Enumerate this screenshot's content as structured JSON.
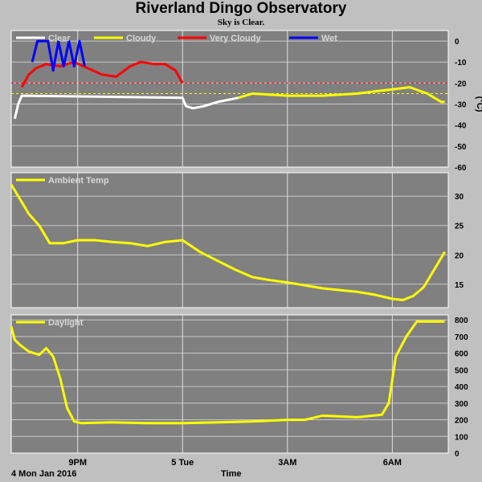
{
  "title": "Riverland Dingo Observatory",
  "subtitle": "Sky is Clear.",
  "footer": {
    "date_label": "4 Mon Jan 2016",
    "xlabel": "Time"
  },
  "chart_data": [
    {
      "type": "line",
      "name": "sky-temperature",
      "unit_label": "(°C)",
      "ylim": [
        -60,
        5
      ],
      "yticks": [
        0,
        -10,
        -20,
        -30,
        -40,
        -50,
        -60
      ],
      "xticks": [
        "9PM",
        "5 Tue",
        "3AM",
        "6AM"
      ],
      "xtick_hours": [
        21,
        24,
        27,
        30
      ],
      "xlim_hours": [
        19.1,
        31.6
      ],
      "grid": true,
      "legend": "top-left",
      "thresholds": [
        {
          "value": -20,
          "color": "#ff0000"
        },
        {
          "value": -25,
          "color": "#ffff00"
        }
      ],
      "series": [
        {
          "name": "Clear",
          "color": "#ffffff",
          "x": [
            19.2,
            19.3,
            19.4,
            24.0,
            24.1,
            24.3,
            24.6,
            25.0,
            25.3,
            25.6
          ],
          "y": [
            -37,
            -30,
            -26,
            -27,
            -31,
            -32,
            -31,
            -29,
            -28,
            -27
          ]
        },
        {
          "name": "Cloudy",
          "color": "#ffff00",
          "x": [
            25.6,
            26.0,
            27.0,
            28.0,
            29.0,
            29.5,
            30.0,
            30.5,
            31.0,
            31.2,
            31.4,
            31.5
          ],
          "y": [
            -27,
            -25,
            -26,
            -26,
            -25,
            -24,
            -23,
            -22,
            -25,
            -27,
            -29,
            -29
          ]
        },
        {
          "name": "Very Cloudy",
          "color": "#ff0000",
          "x": [
            19.4,
            19.6,
            19.8,
            20.1,
            20.5,
            20.9,
            21.3,
            21.7,
            22.1,
            22.5,
            22.8,
            23.2,
            23.5,
            23.8,
            24.0
          ],
          "y": [
            -22,
            -16,
            -13,
            -11,
            -12,
            -10,
            -13,
            -16,
            -17,
            -12,
            -10,
            -11,
            -11,
            -14,
            -20
          ]
        },
        {
          "name": "Wet",
          "color": "#0000ff",
          "x": [
            19.7,
            19.85,
            20.15,
            20.3,
            20.45,
            20.6,
            20.75,
            20.9,
            21.05,
            21.2
          ],
          "y": [
            -10,
            0,
            0,
            -14,
            0,
            -12,
            0,
            -12,
            0,
            -12
          ]
        }
      ]
    },
    {
      "type": "line",
      "name": "ambient-temperature",
      "ylim": [
        11,
        34
      ],
      "yticks": [
        15,
        20,
        25,
        30
      ],
      "xlim_hours": [
        19.1,
        31.6
      ],
      "grid": true,
      "legend": "top-left",
      "series": [
        {
          "name": "Ambient Temp",
          "color": "#ffff00",
          "x": [
            19.1,
            19.3,
            19.6,
            19.9,
            20.2,
            20.6,
            21.0,
            21.5,
            22.0,
            22.5,
            23.0,
            23.5,
            24.0,
            24.5,
            25.0,
            25.5,
            26.0,
            26.5,
            27.0,
            27.5,
            28.0,
            28.5,
            29.0,
            29.5,
            30.0,
            30.3,
            30.6,
            30.9,
            31.2,
            31.5
          ],
          "y": [
            32,
            30,
            27,
            25,
            22,
            22,
            22.5,
            22.5,
            22.2,
            22,
            21.5,
            22.2,
            22.5,
            20.5,
            19,
            17.5,
            16.2,
            15.7,
            15.3,
            14.8,
            14.3,
            14,
            13.7,
            13.2,
            12.5,
            12.3,
            13,
            14.5,
            17.5,
            20.5
          ]
        }
      ]
    },
    {
      "type": "line",
      "name": "daylight",
      "ylim": [
        0,
        830
      ],
      "yticks": [
        0,
        100,
        200,
        300,
        400,
        500,
        600,
        700,
        800
      ],
      "xlim_hours": [
        19.1,
        31.6
      ],
      "grid": true,
      "legend": "top-left",
      "series": [
        {
          "name": "Daylight",
          "color": "#ffff00",
          "x": [
            19.1,
            19.2,
            19.35,
            19.6,
            19.9,
            20.1,
            20.3,
            20.5,
            20.7,
            20.9,
            21.1,
            22.0,
            23.0,
            24.0,
            25.0,
            26.0,
            27.0,
            27.5,
            28.0,
            29.0,
            29.7,
            29.9,
            30.1,
            30.4,
            30.7,
            31.0,
            31.5
          ],
          "y": [
            760,
            680,
            650,
            610,
            590,
            630,
            580,
            450,
            270,
            190,
            180,
            185,
            180,
            180,
            185,
            190,
            200,
            200,
            225,
            215,
            230,
            300,
            580,
            700,
            790,
            790,
            790
          ]
        }
      ]
    }
  ]
}
